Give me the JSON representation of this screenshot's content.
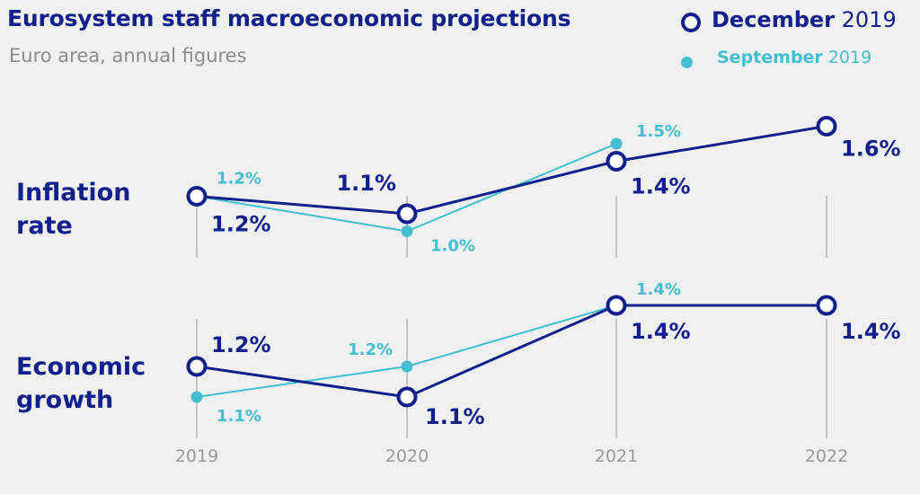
{
  "title": "Eurosystem staff macroeconomic projections",
  "subtitle": "Euro area, annual figures",
  "legend": {
    "december": {
      "name": "December",
      "year": "2019"
    },
    "september": {
      "name": "September",
      "year": "2019"
    }
  },
  "colors": {
    "december": "#11208a",
    "september": "#45bed0",
    "axis": "#a8a8a8",
    "year_label": "#9a9a9a"
  },
  "rows": [
    {
      "label_line1": "Inflation",
      "label_line2": "rate"
    },
    {
      "label_line1": "Economic",
      "label_line2": "growth"
    }
  ],
  "chart_data": {
    "type": "line",
    "x": [
      "2019",
      "2020",
      "2021",
      "2022"
    ],
    "panels": [
      {
        "name": "Inflation rate",
        "series": [
          {
            "name": "December 2019",
            "values": [
              1.2,
              1.1,
              1.4,
              1.6
            ],
            "labels": [
              "1.2%",
              "1.1%",
              "1.4%",
              "1.6%"
            ]
          },
          {
            "name": "September 2019",
            "values": [
              1.2,
              1.0,
              1.5,
              null
            ],
            "labels": [
              "1.2%",
              "1.0%",
              "1.5%",
              ""
            ]
          }
        ]
      },
      {
        "name": "Economic growth",
        "series": [
          {
            "name": "December 2019",
            "values": [
              1.2,
              1.1,
              1.4,
              1.4
            ],
            "labels": [
              "1.2%",
              "1.1%",
              "1.4%",
              "1.4%"
            ]
          },
          {
            "name": "September 2019",
            "values": [
              1.1,
              1.2,
              1.4,
              null
            ],
            "labels": [
              "1.1%",
              "1.2%",
              "1.4%",
              ""
            ]
          }
        ]
      }
    ]
  }
}
